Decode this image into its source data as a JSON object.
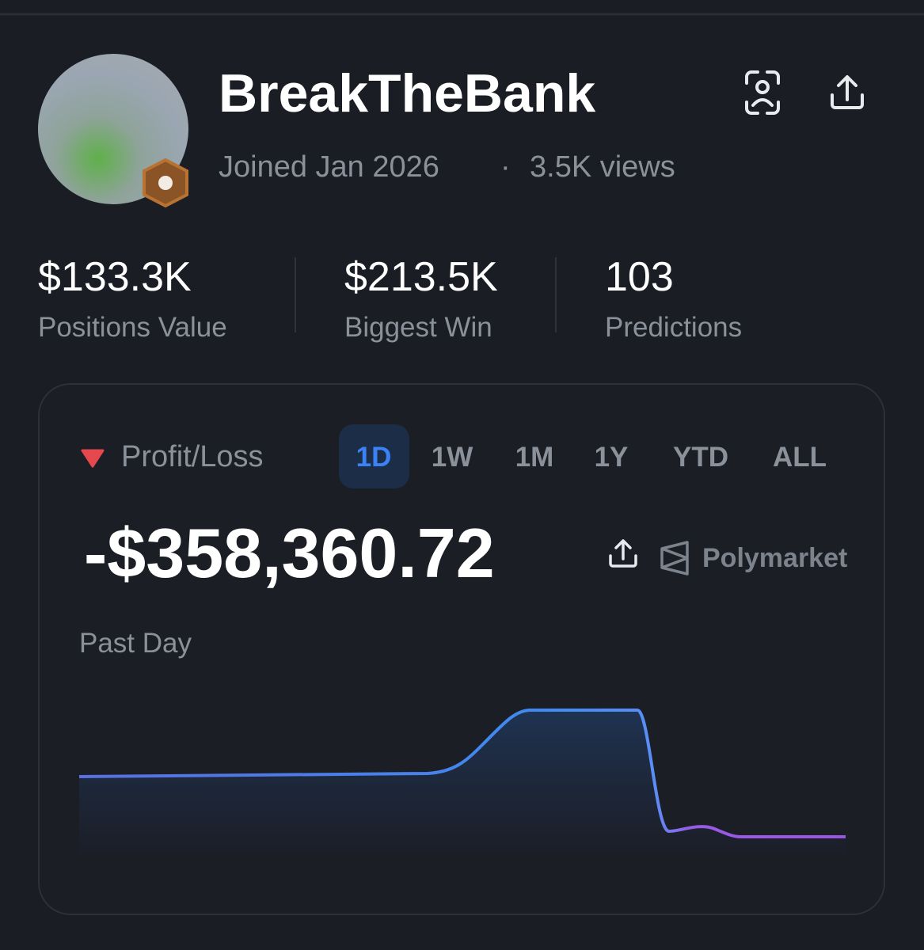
{
  "profile": {
    "name": "BreakTheBank",
    "joined": "Joined Jan 2026",
    "views": "3.5K views"
  },
  "stats": [
    {
      "value": "$133.3K",
      "label": "Positions Value"
    },
    {
      "value": "$213.5K",
      "label": "Biggest Win"
    },
    {
      "value": "103",
      "label": "Predictions"
    }
  ],
  "pnl": {
    "title": "Profit/Loss",
    "tabs": [
      "1D",
      "1W",
      "1M",
      "1Y",
      "YTD",
      "ALL"
    ],
    "value": "-$358,360.72",
    "source": "Polymarket",
    "period": "Past Day"
  }
}
